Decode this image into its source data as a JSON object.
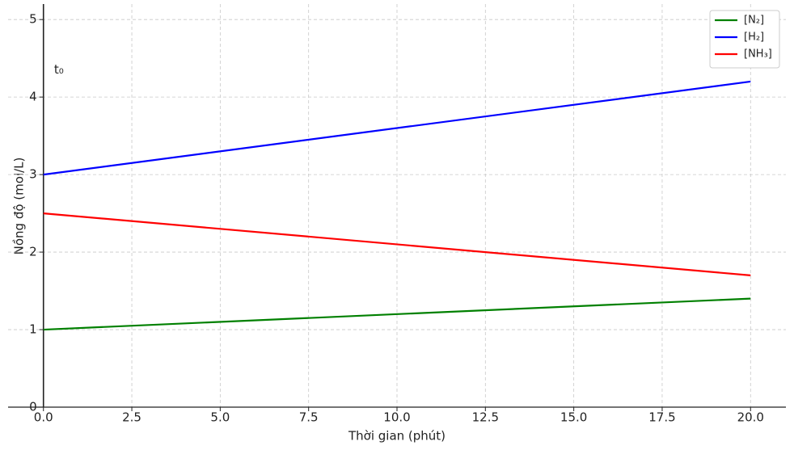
{
  "chart_data": {
    "type": "line",
    "x_label": "Thời gian (phút)",
    "y_label": "Nồng độ (mol/L)",
    "annotation": {
      "text": "t₀",
      "x": 0.3,
      "y": 4.35
    },
    "x": [
      0,
      20
    ],
    "series": [
      {
        "name": "[N₂]",
        "color": "#008000",
        "values": [
          1.0,
          1.4
        ]
      },
      {
        "name": "[H₂]",
        "color": "#0000ff",
        "values": [
          3.0,
          4.2
        ]
      },
      {
        "name": "[NH₃]",
        "color": "#ff0000",
        "values": [
          2.5,
          1.7
        ]
      }
    ],
    "xlim": [
      -1,
      21
    ],
    "ylim": [
      0,
      5.2
    ],
    "xticks": [
      {
        "value": 0,
        "label": "0.0"
      },
      2.5,
      {
        "value": 5,
        "label": "5.0"
      },
      7.5,
      {
        "value": 10,
        "label": "10.0"
      },
      12.5,
      {
        "value": 15,
        "label": "15.0"
      },
      17.5,
      {
        "value": 20,
        "label": "20.0"
      }
    ],
    "yticks": [
      0,
      1,
      2,
      3,
      4,
      5
    ],
    "grid": true,
    "legend": "upper right"
  }
}
